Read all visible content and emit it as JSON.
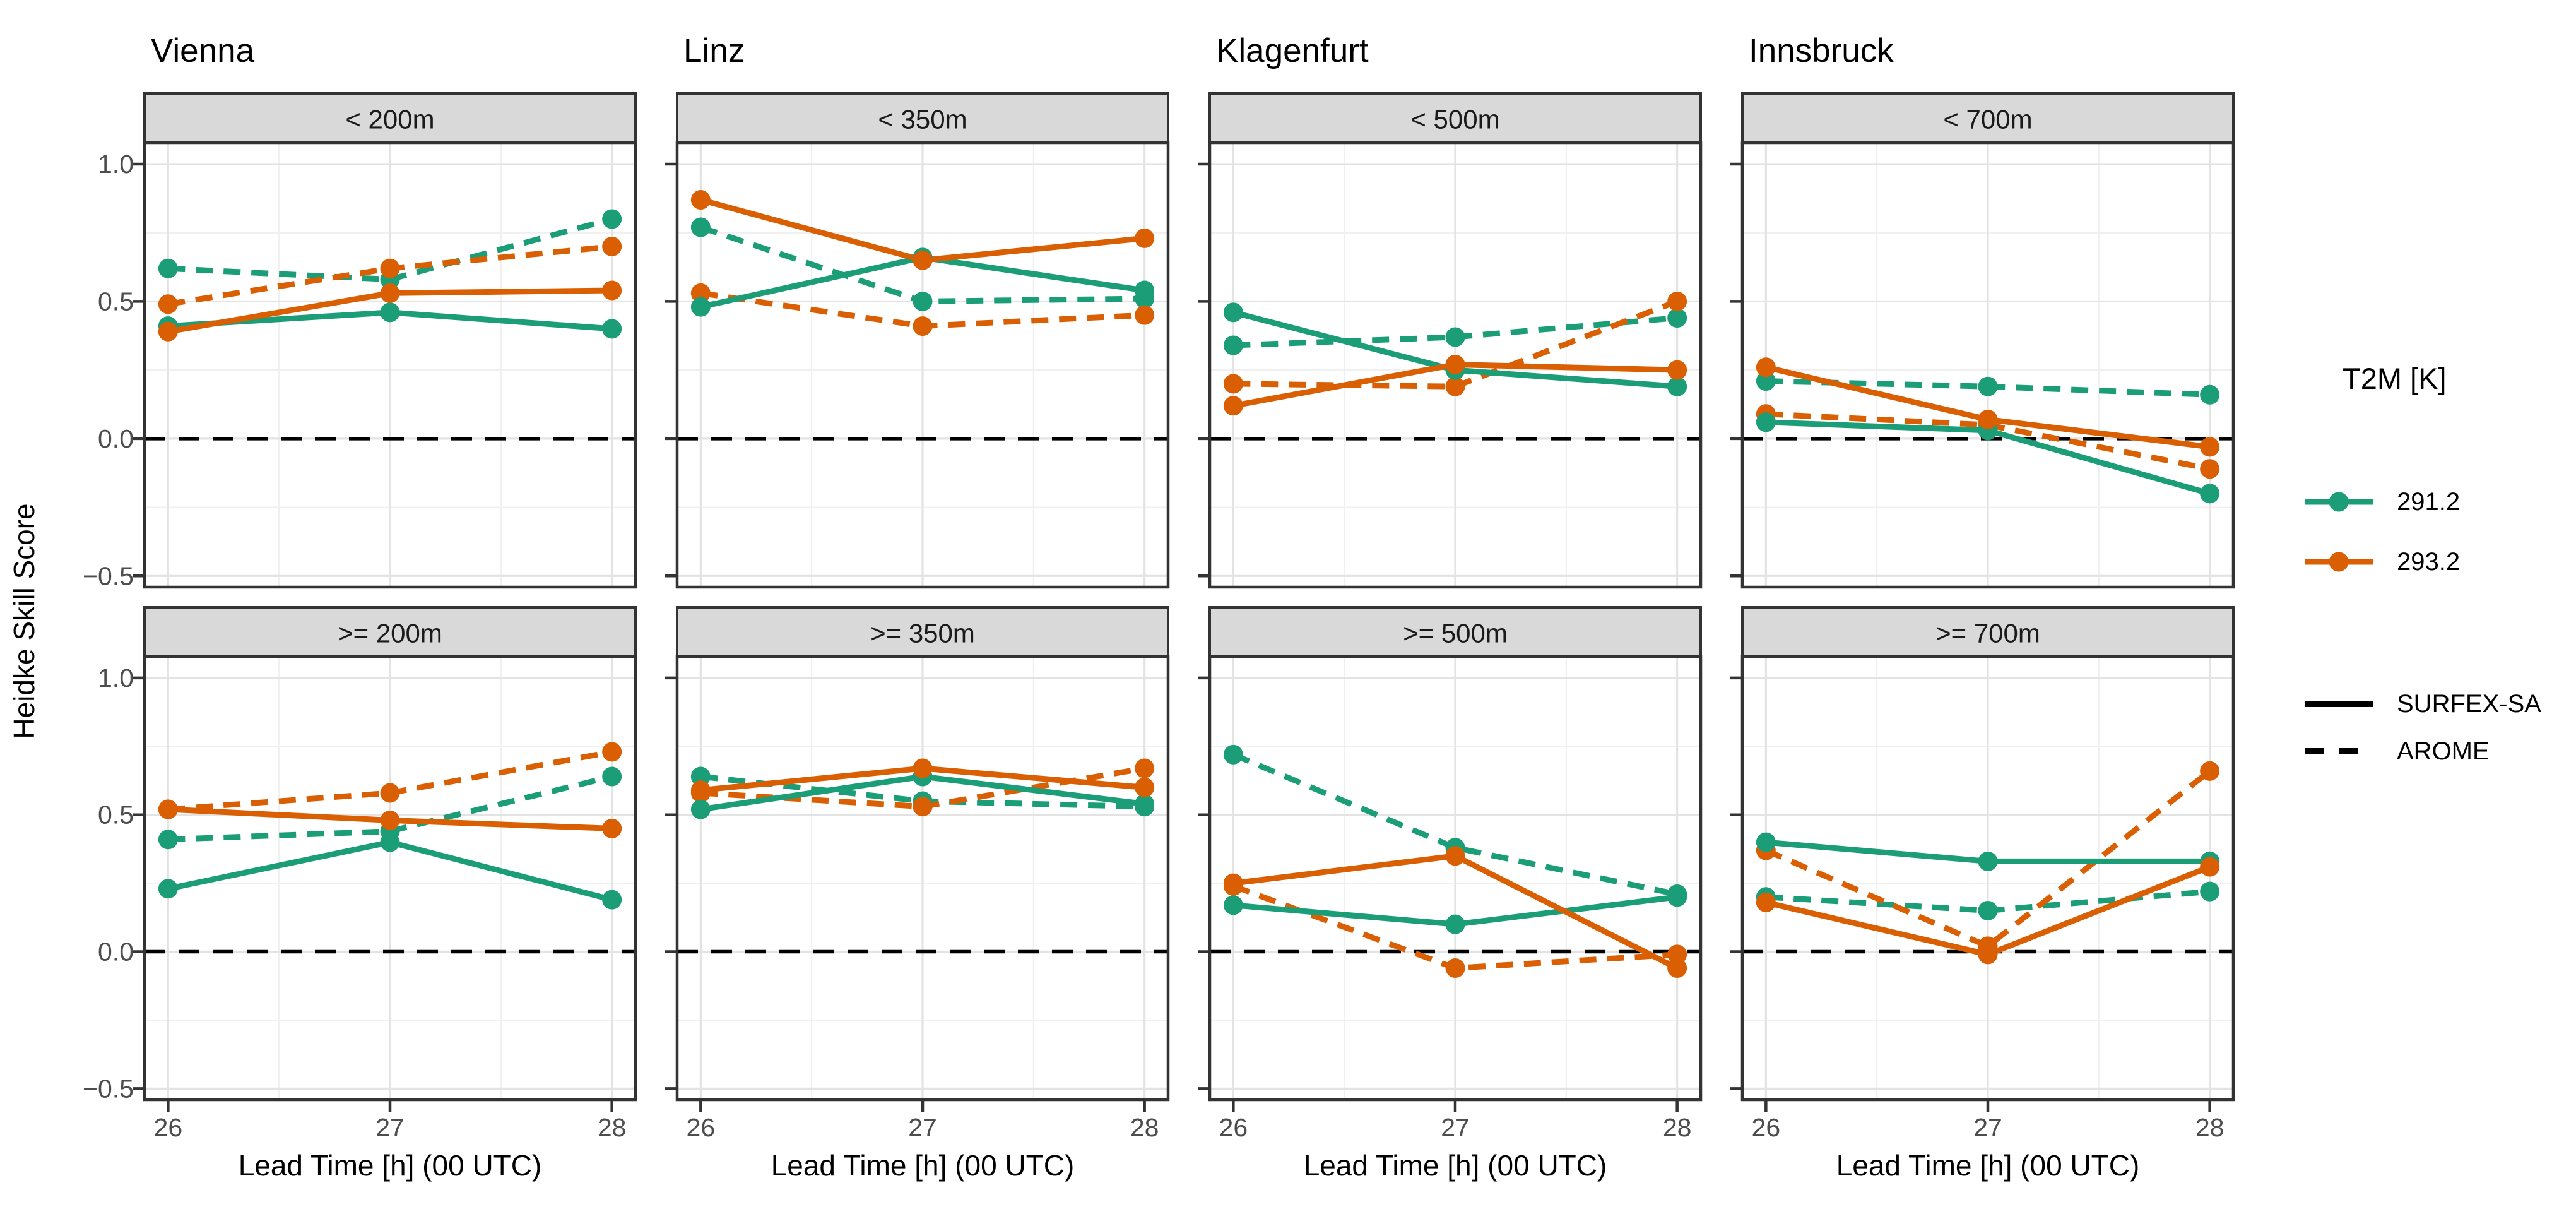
{
  "axes": {
    "y_title": "Heidke Skill Score",
    "x_title": "Lead Time [h] (00 UTC)",
    "y_tick_labels": [
      "1.0",
      "0.5",
      "0.0",
      "−0.5"
    ],
    "x_tick_labels": [
      "26",
      "27",
      "28"
    ]
  },
  "legend": {
    "color": {
      "title": "T2M [K]",
      "items": [
        {
          "label": "291.2",
          "color": "#1b9e77"
        },
        {
          "label": "293.2",
          "color": "#d95f02"
        }
      ]
    },
    "linetype": {
      "items": [
        {
          "label": "SURFEX-SA",
          "style": "solid"
        },
        {
          "label": "AROME",
          "style": "dashed"
        }
      ]
    }
  },
  "chart_data": {
    "type": "line",
    "x": [
      26,
      27,
      28
    ],
    "xlabel": "Lead Time [h] (00 UTC)",
    "ylabel": "Heidke Skill Score",
    "ylim": [
      -0.53,
      1.08
    ],
    "y_major_ticks": [
      1.0,
      0.5,
      0.0,
      -0.5
    ],
    "y_minor_ticks": [
      0.75,
      0.25,
      -0.25
    ],
    "x_minor_ticks": [
      26.5,
      27.5
    ],
    "grid": "major and minor, light gray on white",
    "zero_reference_line": "black dashed at y=0",
    "facet_columns": [
      "Vienna",
      "Linz",
      "Klagenfurt",
      "Innsbruck"
    ],
    "facet_strips": {
      "top_row": [
        "< 200m",
        "< 350m",
        "< 500m",
        "< 700m"
      ],
      "bottom_row": [
        ">= 200m",
        ">= 350m",
        ">= 500m",
        ">= 700m"
      ]
    },
    "panels": [
      {
        "city": "Vienna",
        "strip": "< 200m",
        "row": 0,
        "col": 0,
        "series": [
          {
            "t2m": "291.2",
            "model": "AROME",
            "values": [
              0.62,
              0.58,
              0.8
            ]
          },
          {
            "t2m": "293.2",
            "model": "AROME",
            "values": [
              0.49,
              0.62,
              0.7
            ]
          },
          {
            "t2m": "291.2",
            "model": "SURFEX-SA",
            "values": [
              0.41,
              0.46,
              0.4
            ]
          },
          {
            "t2m": "293.2",
            "model": "SURFEX-SA",
            "values": [
              0.39,
              0.53,
              0.54
            ]
          }
        ]
      },
      {
        "city": "Linz",
        "strip": "< 350m",
        "row": 0,
        "col": 1,
        "series": [
          {
            "t2m": "291.2",
            "model": "AROME",
            "values": [
              0.77,
              0.5,
              0.51
            ]
          },
          {
            "t2m": "293.2",
            "model": "AROME",
            "values": [
              0.53,
              0.41,
              0.45
            ]
          },
          {
            "t2m": "291.2",
            "model": "SURFEX-SA",
            "values": [
              0.48,
              0.66,
              0.54
            ]
          },
          {
            "t2m": "293.2",
            "model": "SURFEX-SA",
            "values": [
              0.87,
              0.65,
              0.73
            ]
          }
        ]
      },
      {
        "city": "Klagenfurt",
        "strip": "< 500m",
        "row": 0,
        "col": 2,
        "series": [
          {
            "t2m": "291.2",
            "model": "AROME",
            "values": [
              0.34,
              0.37,
              0.44
            ]
          },
          {
            "t2m": "293.2",
            "model": "AROME",
            "values": [
              0.2,
              0.19,
              0.5
            ]
          },
          {
            "t2m": "291.2",
            "model": "SURFEX-SA",
            "values": [
              0.46,
              0.25,
              0.19
            ]
          },
          {
            "t2m": "293.2",
            "model": "SURFEX-SA",
            "values": [
              0.12,
              0.27,
              0.25
            ]
          }
        ]
      },
      {
        "city": "Innsbruck",
        "strip": "< 700m",
        "row": 0,
        "col": 3,
        "series": [
          {
            "t2m": "291.2",
            "model": "AROME",
            "values": [
              0.21,
              0.19,
              0.16
            ]
          },
          {
            "t2m": "293.2",
            "model": "AROME",
            "values": [
              0.09,
              0.05,
              -0.11
            ]
          },
          {
            "t2m": "291.2",
            "model": "SURFEX-SA",
            "values": [
              0.06,
              0.03,
              -0.2
            ]
          },
          {
            "t2m": "293.2",
            "model": "SURFEX-SA",
            "values": [
              0.26,
              0.07,
              -0.03
            ]
          }
        ]
      },
      {
        "city": "Vienna",
        "strip": ">= 200m",
        "row": 1,
        "col": 0,
        "series": [
          {
            "t2m": "291.2",
            "model": "AROME",
            "values": [
              0.41,
              0.44,
              0.64
            ]
          },
          {
            "t2m": "293.2",
            "model": "AROME",
            "values": [
              0.52,
              0.58,
              0.73
            ]
          },
          {
            "t2m": "291.2",
            "model": "SURFEX-SA",
            "values": [
              0.23,
              0.4,
              0.19
            ]
          },
          {
            "t2m": "293.2",
            "model": "SURFEX-SA",
            "values": [
              0.52,
              0.48,
              0.45
            ]
          }
        ]
      },
      {
        "city": "Linz",
        "strip": ">= 350m",
        "row": 1,
        "col": 1,
        "series": [
          {
            "t2m": "291.2",
            "model": "AROME",
            "values": [
              0.64,
              0.55,
              0.53
            ]
          },
          {
            "t2m": "293.2",
            "model": "AROME",
            "values": [
              0.58,
              0.53,
              0.67
            ]
          },
          {
            "t2m": "291.2",
            "model": "SURFEX-SA",
            "values": [
              0.52,
              0.64,
              0.54
            ]
          },
          {
            "t2m": "293.2",
            "model": "SURFEX-SA",
            "values": [
              0.59,
              0.67,
              0.6
            ]
          }
        ]
      },
      {
        "city": "Klagenfurt",
        "strip": ">= 500m",
        "row": 1,
        "col": 2,
        "series": [
          {
            "t2m": "291.2",
            "model": "AROME",
            "values": [
              0.72,
              0.38,
              0.21
            ]
          },
          {
            "t2m": "293.2",
            "model": "AROME",
            "values": [
              0.24,
              -0.06,
              -0.01
            ]
          },
          {
            "t2m": "291.2",
            "model": "SURFEX-SA",
            "values": [
              0.17,
              0.1,
              0.2
            ]
          },
          {
            "t2m": "293.2",
            "model": "SURFEX-SA",
            "values": [
              0.25,
              0.35,
              -0.06
            ]
          }
        ]
      },
      {
        "city": "Innsbruck",
        "strip": ">= 700m",
        "row": 1,
        "col": 3,
        "series": [
          {
            "t2m": "291.2",
            "model": "AROME",
            "values": [
              0.2,
              0.15,
              0.22
            ]
          },
          {
            "t2m": "293.2",
            "model": "AROME",
            "values": [
              0.37,
              0.02,
              0.66
            ]
          },
          {
            "t2m": "291.2",
            "model": "SURFEX-SA",
            "values": [
              0.4,
              0.33,
              0.33
            ]
          },
          {
            "t2m": "293.2",
            "model": "SURFEX-SA",
            "values": [
              0.18,
              -0.01,
              0.31
            ]
          }
        ]
      }
    ]
  }
}
